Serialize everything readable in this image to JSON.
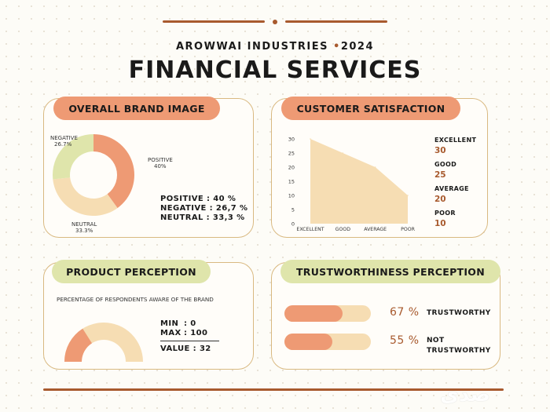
{
  "header": {
    "company": "AROWWAI INDUSTRIES",
    "bullet": "•",
    "year": "2024",
    "title": "FINANCIAL SERVICES"
  },
  "colors": {
    "accent": "#a85a2e",
    "orange": "#ee9a74",
    "green": "#dfe5ab",
    "beige": "#f6ddb3",
    "card_border": "#d9b981"
  },
  "brand_image": {
    "title": "OVERALL BRAND IMAGE",
    "slices": [
      {
        "label": "POSITIVE",
        "value_text": "40%",
        "value": 40,
        "color": "#ee9a74"
      },
      {
        "label": "NEUTRAL",
        "value_text": "33.3%",
        "value": 33.3,
        "color": "#f6ddb3"
      },
      {
        "label": "NEGATIVE",
        "value_text": "26.7%",
        "value": 26.7,
        "color": "#dfe5ab"
      }
    ],
    "stats": [
      {
        "label": "POSITIVE",
        "value": ": 40 %"
      },
      {
        "label": "NEGATIVE",
        "value": ": 26,7 %"
      },
      {
        "label": "NEUTRAL",
        "value": ": 33,3 %"
      }
    ]
  },
  "customer_satisfaction": {
    "title": "CUSTOMER SATISFACTION",
    "legend": [
      {
        "label": "EXCELLENT",
        "value": "30"
      },
      {
        "label": "GOOD",
        "value": "25"
      },
      {
        "label": "AVERAGE",
        "value": "20"
      },
      {
        "label": "POOR",
        "value": "10"
      }
    ]
  },
  "product_perception": {
    "title": "PRODUCT PERCEPTION",
    "description": "PERCENTAGE OF RESPONDENTS AWARE OF THE BRAND",
    "min_label": "MIN",
    "min_value": ": 0",
    "max_label": "MAX",
    "max_value": ": 100",
    "value_label": "VALUE",
    "value_text": ": 32",
    "gauge_value": 32,
    "gauge_min": 0,
    "gauge_max": 100
  },
  "trustworthiness": {
    "title": "TRUSTWORTHINESS PERCEPTION",
    "rows": [
      {
        "pct_text": "67 %",
        "fraction": 0.67,
        "label_line1": "TRUSTWORTHY",
        "label_line2": ""
      },
      {
        "pct_text": "55 %",
        "fraction": 0.55,
        "label_line1": "NOT",
        "label_line2": "TRUSTWORTHY"
      }
    ]
  },
  "chart_data": {
    "type": "area",
    "categories": [
      "EXCELLENT",
      "GOOD",
      "AVERAGE",
      "POOR"
    ],
    "values": [
      30,
      25,
      20,
      10
    ],
    "yticks": [
      "0",
      "5",
      "10",
      "15",
      "20",
      "25",
      "30"
    ],
    "ylim": [
      0,
      30
    ],
    "grid": false,
    "legend": "right"
  },
  "watermark": "صدى"
}
